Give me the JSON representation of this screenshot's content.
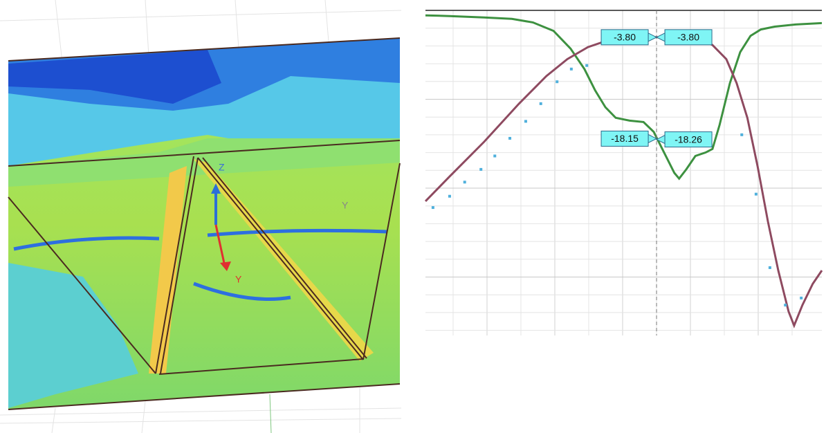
{
  "view3d": {
    "axis_labels": [
      "Z",
      "Y",
      "Y"
    ]
  },
  "chart_data": {
    "type": "line",
    "xlim": [
      0,
      100
    ],
    "ylim": [
      -46,
      0
    ],
    "grid": true,
    "series": [
      {
        "color": "#3d9140",
        "style": "line",
        "x": [
          0,
          6.1,
          14.8,
          21.8,
          27.1,
          32.3,
          36.6,
          40.1,
          42.8,
          45.4,
          48.0,
          51.5,
          55.0,
          57.6,
          60.2,
          62.8,
          64.0,
          65.8,
          68.1,
          70.7,
          72.4,
          74.2,
          76.8,
          79.4,
          82.0,
          84.6,
          88.1,
          93.4,
          100
        ],
        "values": [
          -0.7,
          -0.8,
          -1.0,
          -1.2,
          -1.7,
          -2.9,
          -5.4,
          -8.3,
          -11.3,
          -13.7,
          -15.2,
          -15.6,
          -15.8,
          -17.2,
          -20.1,
          -23.0,
          -23.8,
          -22.5,
          -20.6,
          -20.1,
          -19.6,
          -16.2,
          -10.3,
          -5.9,
          -3.6,
          -2.7,
          -2.3,
          -2.0,
          -1.8
        ]
      },
      {
        "color": "#8e4a60",
        "style": "line",
        "x": [
          0,
          6.1,
          14.8,
          23.6,
          30.5,
          35.8,
          41.0,
          46.2,
          51.5,
          58.3,
          63.7,
          68.9,
          72.4,
          75.9,
          78.5,
          81.2,
          83.8,
          86.4,
          89.0,
          91.6,
          93.0,
          95.1,
          97.7,
          100
        ],
        "values": [
          -27.0,
          -23.5,
          -18.6,
          -13.2,
          -9.3,
          -6.9,
          -5.2,
          -4.2,
          -3.6,
          -3.8,
          -3.8,
          -3.9,
          -4.9,
          -6.9,
          -10.3,
          -15.2,
          -22.1,
          -29.9,
          -36.8,
          -42.6,
          -44.6,
          -41.7,
          -38.7,
          -36.8
        ]
      },
      {
        "color": "#4fb0dc",
        "style": "dots",
        "x": [
          1.9,
          6.1,
          9.9,
          14.0,
          17.5,
          21.3,
          25.3,
          29.1,
          33.2,
          36.8,
          40.7,
          79.8,
          83.4,
          86.9,
          90.8,
          94.8
        ],
        "values": [
          -27.9,
          -26.3,
          -24.3,
          -22.5,
          -20.6,
          -18.1,
          -15.7,
          -13.2,
          -10.1,
          -8.3,
          -7.8,
          -17.6,
          -26.0,
          -36.4,
          -41.7,
          -40.7
        ]
      }
    ],
    "marker_x": 58.3,
    "markers": {
      "values": [
        -3.8,
        -3.8,
        -18.15,
        -18.26
      ],
      "value_labels": [
        "-3.80",
        "-3.80",
        "-18.15",
        "-18.26"
      ],
      "side": [
        "left",
        "right",
        "left",
        "right"
      ]
    }
  }
}
